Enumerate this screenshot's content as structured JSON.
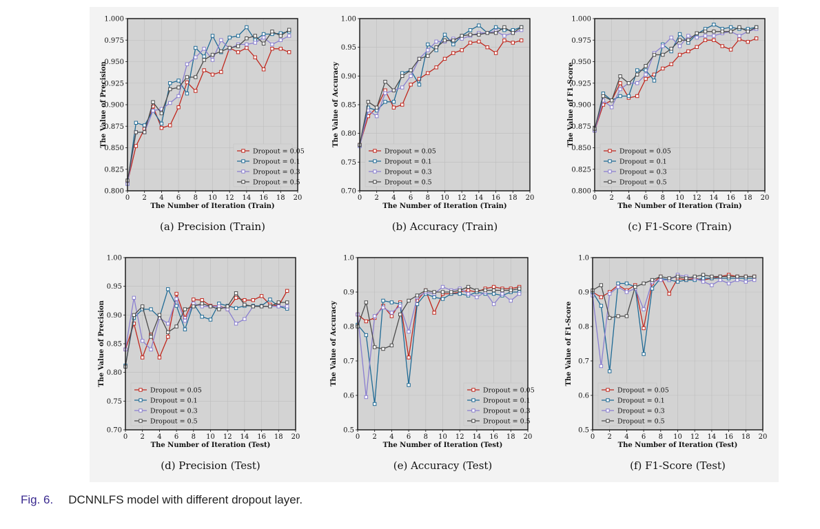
{
  "caption": {
    "label": "Fig. 6.",
    "text": "DCNNLFS model with different dropout layer."
  },
  "colors": {
    "Dropout = 0.05": "#c0271d",
    "Dropout = 0.1": "#1f6a95",
    "Dropout = 0.3": "#8a7fd0",
    "Dropout = 0.5": "#4a4a4a"
  },
  "chart_data": [
    {
      "type": "line",
      "subcaption": "(a)  Precision (Train)",
      "xlabel": "The Number of Iteration (Train)",
      "ylabel": "The Value of Precision",
      "xlim": [
        0,
        20
      ],
      "ylim": [
        0.8,
        1.0
      ],
      "xticks": [
        0,
        2,
        4,
        6,
        8,
        10,
        12,
        14,
        16,
        18,
        20
      ],
      "yticks": [
        "0.800",
        "0.825",
        "0.850",
        "0.875",
        "0.900",
        "0.925",
        "0.950",
        "0.975",
        "1.000"
      ],
      "legend": "lower-right",
      "x": [
        0,
        1,
        2,
        3,
        4,
        5,
        6,
        7,
        8,
        9,
        10,
        11,
        12,
        13,
        14,
        15,
        16,
        17,
        18,
        19
      ],
      "series": [
        {
          "name": "Dropout = 0.05",
          "values": [
            0.81,
            0.852,
            0.872,
            0.898,
            0.873,
            0.876,
            0.897,
            0.926,
            0.916,
            0.94,
            0.935,
            0.938,
            0.966,
            0.961,
            0.966,
            0.955,
            0.941,
            0.965,
            0.965,
            0.961
          ]
        },
        {
          "name": "Dropout = 0.1",
          "values": [
            0.808,
            0.879,
            0.876,
            0.893,
            0.878,
            0.925,
            0.928,
            0.913,
            0.966,
            0.956,
            0.98,
            0.961,
            0.978,
            0.98,
            0.99,
            0.975,
            0.982,
            0.982,
            0.983,
            0.985
          ]
        },
        {
          "name": "Dropout = 0.3",
          "values": [
            0.808,
            0.868,
            0.868,
            0.893,
            0.895,
            0.902,
            0.91,
            0.947,
            0.955,
            0.965,
            0.952,
            0.975,
            0.965,
            0.97,
            0.97,
            0.972,
            0.978,
            0.97,
            0.975,
            0.98
          ]
        },
        {
          "name": "Dropout = 0.5",
          "values": [
            0.812,
            0.868,
            0.868,
            0.903,
            0.89,
            0.918,
            0.92,
            0.932,
            0.932,
            0.952,
            0.958,
            0.962,
            0.966,
            0.968,
            0.977,
            0.98,
            0.971,
            0.985,
            0.98,
            0.987
          ]
        }
      ]
    },
    {
      "type": "line",
      "subcaption": "(b)  Accuracy (Train)",
      "xlabel": "The Number of Iteration (Train)",
      "ylabel": "The Value of Accuracy",
      "xlim": [
        0,
        20
      ],
      "ylim": [
        0.7,
        1.0
      ],
      "xticks": [
        0,
        2,
        4,
        6,
        8,
        10,
        12,
        14,
        16,
        18,
        20
      ],
      "yticks": [
        "0.70",
        "0.75",
        "0.80",
        "0.85",
        "0.90",
        "0.95",
        "1.00"
      ],
      "legend": "lower-left",
      "x": [
        0,
        1,
        2,
        3,
        4,
        5,
        6,
        7,
        8,
        9,
        10,
        11,
        12,
        13,
        14,
        15,
        16,
        17,
        18,
        19
      ],
      "series": [
        {
          "name": "Dropout = 0.05",
          "values": [
            0.78,
            0.83,
            0.845,
            0.875,
            0.845,
            0.85,
            0.885,
            0.895,
            0.905,
            0.915,
            0.93,
            0.94,
            0.945,
            0.958,
            0.96,
            0.95,
            0.94,
            0.962,
            0.958,
            0.962
          ]
        },
        {
          "name": "Dropout = 0.1",
          "values": [
            0.778,
            0.845,
            0.84,
            0.855,
            0.855,
            0.905,
            0.91,
            0.885,
            0.955,
            0.945,
            0.972,
            0.955,
            0.97,
            0.98,
            0.988,
            0.975,
            0.985,
            0.98,
            0.98,
            0.985
          ]
        },
        {
          "name": "Dropout = 0.3",
          "values": [
            0.778,
            0.84,
            0.83,
            0.87,
            0.875,
            0.88,
            0.9,
            0.93,
            0.945,
            0.96,
            0.96,
            0.965,
            0.965,
            0.97,
            0.975,
            0.975,
            0.978,
            0.97,
            0.975,
            0.98
          ]
        },
        {
          "name": "Dropout = 0.5",
          "values": [
            0.78,
            0.855,
            0.845,
            0.89,
            0.875,
            0.9,
            0.91,
            0.93,
            0.935,
            0.95,
            0.962,
            0.962,
            0.97,
            0.972,
            0.972,
            0.975,
            0.975,
            0.985,
            0.975,
            0.985
          ]
        }
      ]
    },
    {
      "type": "line",
      "subcaption": "(c)  F1-Score (Train)",
      "xlabel": "The Number of Iteration (Train)",
      "ylabel": "The Value of F1-Score",
      "xlim": [
        0,
        20
      ],
      "ylim": [
        0.8,
        1.0
      ],
      "xticks": [
        0,
        2,
        4,
        6,
        8,
        10,
        12,
        14,
        16,
        18,
        20
      ],
      "yticks": [
        "0.800",
        "0.825",
        "0.850",
        "0.875",
        "0.900",
        "0.925",
        "0.950",
        "0.975",
        "1.000"
      ],
      "legend": "lower-left",
      "x": [
        0,
        1,
        2,
        3,
        4,
        5,
        6,
        7,
        8,
        9,
        10,
        11,
        12,
        13,
        14,
        15,
        16,
        17,
        18,
        19
      ],
      "series": [
        {
          "name": "Dropout = 0.05",
          "values": [
            0.87,
            0.9,
            0.905,
            0.925,
            0.908,
            0.91,
            0.93,
            0.935,
            0.942,
            0.947,
            0.958,
            0.962,
            0.967,
            0.975,
            0.975,
            0.968,
            0.964,
            0.976,
            0.973,
            0.977
          ]
        },
        {
          "name": "Dropout = 0.1",
          "values": [
            0.87,
            0.913,
            0.905,
            0.91,
            0.91,
            0.94,
            0.94,
            0.928,
            0.97,
            0.962,
            0.982,
            0.972,
            0.982,
            0.988,
            0.993,
            0.988,
            0.99,
            0.988,
            0.988,
            0.99
          ]
        },
        {
          "name": "Dropout = 0.3",
          "values": [
            0.87,
            0.905,
            0.897,
            0.918,
            0.925,
            0.925,
            0.935,
            0.96,
            0.968,
            0.978,
            0.968,
            0.98,
            0.978,
            0.98,
            0.98,
            0.983,
            0.985,
            0.98,
            0.985,
            0.988
          ]
        },
        {
          "name": "Dropout = 0.5",
          "values": [
            0.872,
            0.91,
            0.905,
            0.933,
            0.925,
            0.935,
            0.945,
            0.958,
            0.958,
            0.965,
            0.975,
            0.975,
            0.983,
            0.985,
            0.985,
            0.985,
            0.985,
            0.99,
            0.985,
            0.99
          ]
        }
      ]
    },
    {
      "type": "line",
      "subcaption": "(d)  Precision (Test)",
      "xlabel": "The Number of Iteration (Test)",
      "ylabel": "The Value of Precision",
      "xlim": [
        0,
        20
      ],
      "ylim": [
        0.7,
        1.0
      ],
      "xticks": [
        0,
        2,
        4,
        6,
        8,
        10,
        12,
        14,
        16,
        18,
        20
      ],
      "yticks": [
        "0.70",
        "0.75",
        "0.80",
        "0.85",
        "0.90",
        "0.95",
        "1.00"
      ],
      "legend": "lower-left",
      "x": [
        0,
        1,
        2,
        3,
        4,
        5,
        6,
        7,
        8,
        9,
        10,
        11,
        12,
        13,
        14,
        15,
        16,
        17,
        18,
        19
      ],
      "series": [
        {
          "name": "Dropout = 0.05",
          "values": [
            0.84,
            0.885,
            0.826,
            0.866,
            0.826,
            0.862,
            0.937,
            0.895,
            0.927,
            0.926,
            0.916,
            0.916,
            0.91,
            0.93,
            0.926,
            0.926,
            0.933,
            0.918,
            0.916,
            0.942
          ]
        },
        {
          "name": "Dropout = 0.1",
          "values": [
            0.812,
            0.895,
            0.91,
            0.91,
            0.896,
            0.945,
            0.916,
            0.875,
            0.92,
            0.897,
            0.892,
            0.92,
            0.916,
            0.912,
            0.916,
            0.916,
            0.916,
            0.927,
            0.915,
            0.911
          ]
        },
        {
          "name": "Dropout = 0.3",
          "values": [
            0.84,
            0.93,
            0.855,
            0.84,
            0.895,
            0.885,
            0.928,
            0.89,
            0.92,
            0.915,
            0.915,
            0.915,
            0.91,
            0.885,
            0.893,
            0.915,
            0.915,
            0.915,
            0.915,
            0.915
          ]
        },
        {
          "name": "Dropout = 0.5",
          "values": [
            0.81,
            0.9,
            0.915,
            0.862,
            0.9,
            0.87,
            0.88,
            0.91,
            0.915,
            0.92,
            0.915,
            0.91,
            0.915,
            0.938,
            0.918,
            0.915,
            0.915,
            0.915,
            0.922,
            0.922
          ]
        }
      ]
    },
    {
      "type": "line",
      "subcaption": "(e)  Accuracy (Test)",
      "xlabel": "The Number of Iteration (Test)",
      "ylabel": "The Value of Accuracy",
      "xlim": [
        0,
        20
      ],
      "ylim": [
        0.5,
        1.0
      ],
      "xticks": [
        0,
        2,
        4,
        6,
        8,
        10,
        12,
        14,
        16,
        18,
        20
      ],
      "yticks": [
        "0.5",
        "0.6",
        "0.7",
        "0.8",
        "0.9",
        "1.0"
      ],
      "legend": "lower-right",
      "x": [
        0,
        1,
        2,
        3,
        4,
        5,
        6,
        7,
        8,
        9,
        10,
        11,
        12,
        13,
        14,
        15,
        16,
        17,
        18,
        19
      ],
      "series": [
        {
          "name": "Dropout = 0.05",
          "values": [
            0.835,
            0.815,
            0.825,
            0.86,
            0.83,
            0.87,
            0.71,
            0.875,
            0.905,
            0.84,
            0.895,
            0.895,
            0.9,
            0.905,
            0.9,
            0.91,
            0.915,
            0.91,
            0.91,
            0.915
          ]
        },
        {
          "name": "Dropout = 0.1",
          "values": [
            0.805,
            0.775,
            0.575,
            0.875,
            0.87,
            0.865,
            0.63,
            0.865,
            0.895,
            0.885,
            0.88,
            0.895,
            0.895,
            0.89,
            0.9,
            0.895,
            0.895,
            0.89,
            0.9,
            0.9
          ]
        },
        {
          "name": "Dropout = 0.3",
          "values": [
            0.835,
            0.595,
            0.83,
            0.855,
            0.84,
            0.86,
            0.785,
            0.885,
            0.9,
            0.895,
            0.915,
            0.905,
            0.91,
            0.895,
            0.885,
            0.9,
            0.865,
            0.895,
            0.875,
            0.895
          ]
        },
        {
          "name": "Dropout = 0.5",
          "values": [
            0.8,
            0.87,
            0.74,
            0.735,
            0.745,
            0.835,
            0.875,
            0.89,
            0.905,
            0.9,
            0.9,
            0.9,
            0.905,
            0.915,
            0.905,
            0.905,
            0.905,
            0.905,
            0.905,
            0.91
          ]
        }
      ]
    },
    {
      "type": "line",
      "subcaption": "(f)  F1-Score (Test)",
      "xlabel": "The Number of Iteration (Test)",
      "ylabel": "The Value of F1-Score",
      "xlim": [
        0,
        20
      ],
      "ylim": [
        0.5,
        1.0
      ],
      "xticks": [
        0,
        2,
        4,
        6,
        8,
        10,
        12,
        14,
        16,
        18,
        20
      ],
      "yticks": [
        "0.5",
        "0.6",
        "0.7",
        "0.8",
        "0.9",
        "1.0"
      ],
      "legend": "lower-left",
      "x": [
        0,
        1,
        2,
        3,
        4,
        5,
        6,
        7,
        8,
        9,
        10,
        11,
        12,
        13,
        14,
        15,
        16,
        17,
        18,
        19
      ],
      "series": [
        {
          "name": "Dropout = 0.05",
          "values": [
            0.9,
            0.885,
            0.9,
            0.92,
            0.905,
            0.92,
            0.795,
            0.925,
            0.945,
            0.895,
            0.94,
            0.935,
            0.94,
            0.935,
            0.94,
            0.945,
            0.95,
            0.945,
            0.945,
            0.945
          ]
        },
        {
          "name": "Dropout = 0.1",
          "values": [
            0.9,
            0.86,
            0.67,
            0.925,
            0.925,
            0.915,
            0.72,
            0.91,
            0.94,
            0.935,
            0.93,
            0.935,
            0.935,
            0.94,
            0.94,
            0.94,
            0.94,
            0.94,
            0.94,
            0.94
          ]
        },
        {
          "name": "Dropout = 0.3",
          "values": [
            0.89,
            0.685,
            0.895,
            0.915,
            0.9,
            0.91,
            0.85,
            0.93,
            0.935,
            0.935,
            0.95,
            0.945,
            0.94,
            0.93,
            0.92,
            0.935,
            0.925,
            0.935,
            0.93,
            0.935
          ]
        },
        {
          "name": "Dropout = 0.5",
          "values": [
            0.905,
            0.92,
            0.825,
            0.83,
            0.83,
            0.915,
            0.925,
            0.935,
            0.945,
            0.94,
            0.945,
            0.94,
            0.945,
            0.95,
            0.945,
            0.945,
            0.945,
            0.945,
            0.945,
            0.945
          ]
        }
      ]
    }
  ]
}
